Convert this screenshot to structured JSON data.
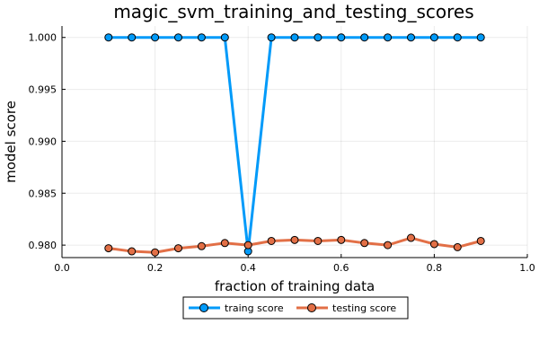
{
  "chart_data": {
    "type": "line",
    "title": "magic_svm_training_and_testing_scores",
    "xlabel": "fraction of training data",
    "ylabel": "model score",
    "xlim": [
      0.0,
      1.0
    ],
    "ylim": [
      0.9788,
      1.0011
    ],
    "xticks": [
      0.0,
      0.2,
      0.4,
      0.6,
      0.8,
      1.0
    ],
    "xtick_labels": [
      "0.0",
      "0.2",
      "0.4",
      "0.6",
      "0.8",
      "1.0"
    ],
    "yticks": [
      0.98,
      0.985,
      0.99,
      0.995,
      1.0
    ],
    "ytick_labels": [
      "0.980",
      "0.985",
      "0.990",
      "0.995",
      "1.000"
    ],
    "grid": true,
    "legend_position": "bottom-outside",
    "x": [
      0.1,
      0.15,
      0.2,
      0.25,
      0.3,
      0.35,
      0.4,
      0.45,
      0.5,
      0.55,
      0.6,
      0.65,
      0.7,
      0.75,
      0.8,
      0.85,
      0.9
    ],
    "series": [
      {
        "name": "traing score",
        "color": "#009af9",
        "values": [
          1.0,
          1.0,
          1.0,
          1.0,
          1.0,
          1.0,
          0.9794,
          1.0,
          1.0,
          1.0,
          1.0,
          1.0,
          1.0,
          1.0,
          1.0,
          1.0,
          1.0
        ]
      },
      {
        "name": "testing score",
        "color": "#e26f46",
        "values": [
          0.9797,
          0.9794,
          0.9793,
          0.9797,
          0.9799,
          0.9802,
          0.98,
          0.9804,
          0.9805,
          0.9804,
          0.9805,
          0.9802,
          0.98,
          0.9807,
          0.9801,
          0.9798,
          0.9804
        ]
      }
    ]
  }
}
